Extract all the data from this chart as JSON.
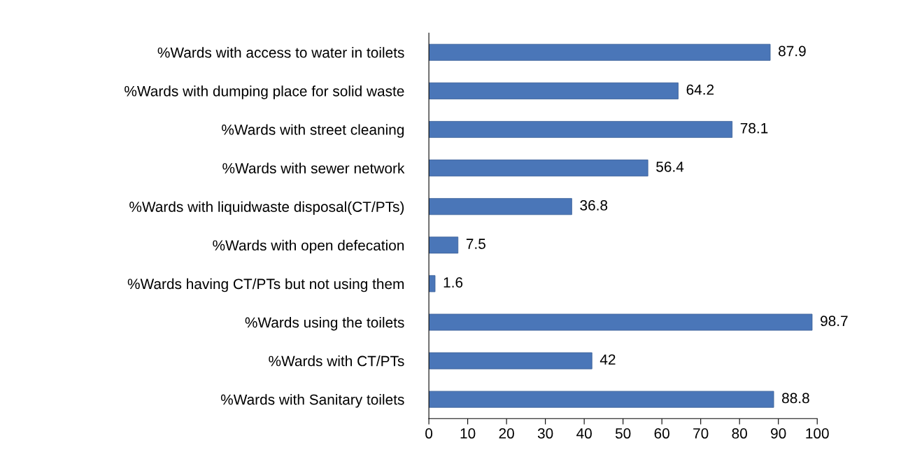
{
  "chart_data": {
    "type": "bar",
    "orientation": "horizontal",
    "categories": [
      "%Wards with access to water in toilets",
      "%Wards with dumping place for solid waste",
      "%Wards with street cleaning",
      "%Wards with sewer network",
      "%Wards with liquidwaste disposal(CT/PTs)",
      "%Wards with open defecation",
      "%Wards having CT/PTs but not using them",
      "%Wards using the toilets",
      "%Wards with CT/PTs",
      "%Wards with Sanitary toilets"
    ],
    "values": [
      87.9,
      64.2,
      78.1,
      56.4,
      36.8,
      7.5,
      1.6,
      98.7,
      42,
      88.8
    ],
    "color": "#4a76b8",
    "xlim": [
      0,
      100
    ],
    "xticks": [
      0,
      10,
      20,
      30,
      40,
      50,
      60,
      70,
      80,
      90,
      100
    ],
    "data_labels": true,
    "grid": false,
    "legend": false
  }
}
